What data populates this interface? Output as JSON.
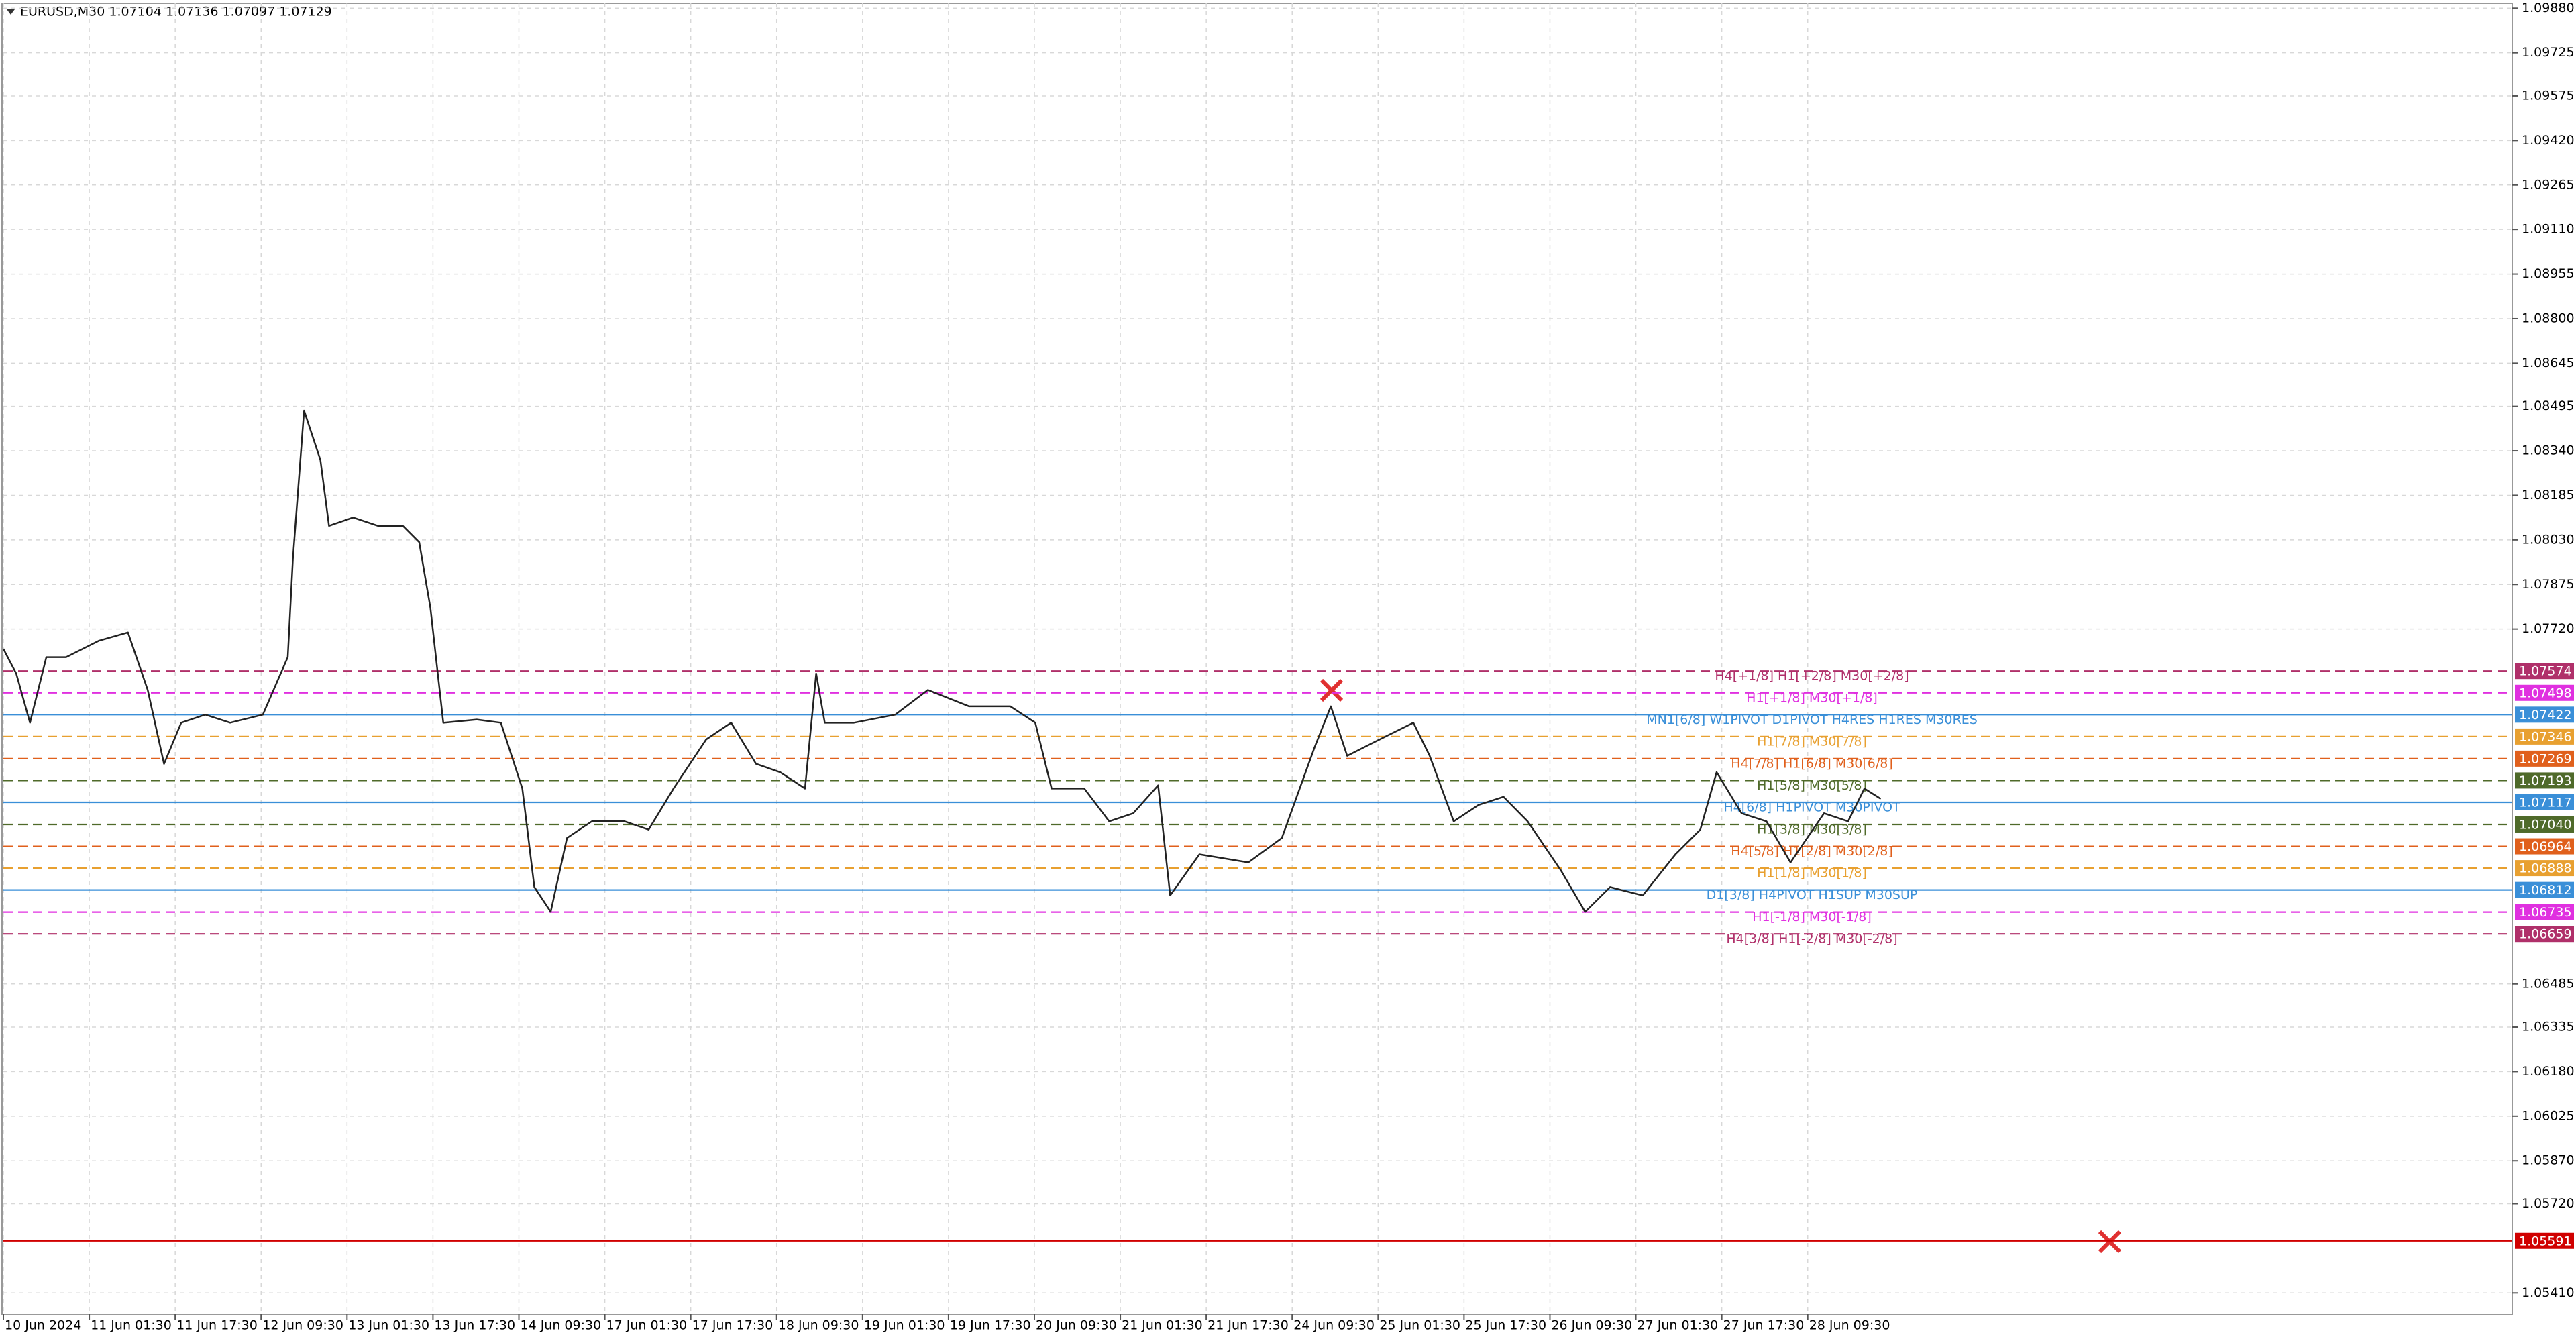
{
  "header": "EURUSD,M30  1.07104 1.07136 1.07097 1.07129",
  "chart_data": {
    "type": "line",
    "xlim": [
      0,
      29.2
    ],
    "ylim": [
      1.05336,
      1.09897
    ],
    "grid": true,
    "xticks": [
      {
        "value": 0,
        "label": "10 Jun 2024"
      },
      {
        "value": 1,
        "label": "11 Jun 01:30"
      },
      {
        "value": 2,
        "label": "11 Jun 17:30"
      },
      {
        "value": 3,
        "label": "12 Jun 09:30"
      },
      {
        "value": 4,
        "label": "13 Jun 01:30"
      },
      {
        "value": 5,
        "label": "13 Jun 17:30"
      },
      {
        "value": 6,
        "label": "14 Jun 09:30"
      },
      {
        "value": 7,
        "label": "17 Jun 01:30"
      },
      {
        "value": 8,
        "label": "17 Jun 17:30"
      },
      {
        "value": 9,
        "label": "18 Jun 09:30"
      },
      {
        "value": 10,
        "label": "19 Jun 01:30"
      },
      {
        "value": 11,
        "label": "19 Jun 17:30"
      },
      {
        "value": 12,
        "label": "20 Jun 09:30"
      },
      {
        "value": 13,
        "label": "21 Jun 01:30"
      },
      {
        "value": 14,
        "label": "21 Jun 17:30"
      },
      {
        "value": 15,
        "label": "24 Jun 09:30"
      },
      {
        "value": 16,
        "label": "25 Jun 01:30"
      },
      {
        "value": 17,
        "label": "25 Jun 17:30"
      },
      {
        "value": 18,
        "label": "26 Jun 09:30"
      },
      {
        "value": 19,
        "label": "27 Jun 01:30"
      },
      {
        "value": 20,
        "label": "27 Jun 17:30"
      },
      {
        "value": 21,
        "label": "28 Jun 09:30"
      }
    ],
    "yticks": [
      {
        "value": 1.0988,
        "label": "1.09880"
      },
      {
        "value": 1.09725,
        "label": "1.09725"
      },
      {
        "value": 1.09575,
        "label": "1.09575"
      },
      {
        "value": 1.0942,
        "label": "1.09420"
      },
      {
        "value": 1.09265,
        "label": "1.09265"
      },
      {
        "value": 1.0911,
        "label": "1.09110"
      },
      {
        "value": 1.08955,
        "label": "1.08955"
      },
      {
        "value": 1.088,
        "label": "1.08800"
      },
      {
        "value": 1.08645,
        "label": "1.08645"
      },
      {
        "value": 1.08495,
        "label": "1.08495"
      },
      {
        "value": 1.0834,
        "label": "1.08340"
      },
      {
        "value": 1.08185,
        "label": "1.08185"
      },
      {
        "value": 1.0803,
        "label": "1.08030"
      },
      {
        "value": 1.07875,
        "label": "1.07875"
      },
      {
        "value": 1.0772,
        "label": "1.07720"
      },
      {
        "value": 1.06485,
        "label": "1.06485"
      },
      {
        "value": 1.06335,
        "label": "1.06335"
      },
      {
        "value": 1.0618,
        "label": "1.06180"
      },
      {
        "value": 1.06025,
        "label": "1.06025"
      },
      {
        "value": 1.0587,
        "label": "1.05870"
      },
      {
        "value": 1.0572,
        "label": "1.05720"
      },
      {
        "value": 1.0541,
        "label": "1.05410"
      }
    ],
    "series": [
      {
        "name": "EURUSD,M30",
        "color": "#222222",
        "x": [
          0,
          0.15,
          0.31,
          0.5,
          0.73,
          1.11,
          1.45,
          1.68,
          1.87,
          2.07,
          2.35,
          2.64,
          3.02,
          3.31,
          3.37,
          3.5,
          3.69,
          3.79,
          4.07,
          4.36,
          4.65,
          4.84,
          4.97,
          5.12,
          5.51,
          5.79,
          6.04,
          6.18,
          6.37,
          6.56,
          6.85,
          7.23,
          7.51,
          7.8,
          8.18,
          8.47,
          8.76,
          9.04,
          9.33,
          9.46,
          9.56,
          9.9,
          10.38,
          10.76,
          11.24,
          11.72,
          12.01,
          12.2,
          12.58,
          12.87,
          13.15,
          13.44,
          13.58,
          13.92,
          14.49,
          14.88,
          15.26,
          15.45,
          15.64,
          16.02,
          16.41,
          16.6,
          16.88,
          17.17,
          17.46,
          17.74,
          18.13,
          18.41,
          18.7,
          19.08,
          19.46,
          19.75,
          19.94,
          20.23,
          20.52,
          20.8,
          21.19,
          21.47,
          21.66,
          21.85
        ],
        "values": [
          1.07651,
          1.07565,
          1.07394,
          1.07622,
          1.07622,
          1.07679,
          1.07708,
          1.07508,
          1.07251,
          1.07394,
          1.07422,
          1.07394,
          1.07422,
          1.07622,
          1.07965,
          1.0848,
          1.08308,
          1.08079,
          1.08108,
          1.08079,
          1.08079,
          1.08022,
          1.07794,
          1.07394,
          1.07405,
          1.07394,
          1.07165,
          1.06822,
          1.06736,
          1.06993,
          1.07051,
          1.07051,
          1.07022,
          1.07165,
          1.07336,
          1.07394,
          1.07251,
          1.07222,
          1.07165,
          1.07565,
          1.07394,
          1.07394,
          1.07422,
          1.07508,
          1.07451,
          1.07451,
          1.07394,
          1.07165,
          1.07165,
          1.07051,
          1.07079,
          1.07176,
          1.06793,
          1.06936,
          1.06908,
          1.06993,
          1.07308,
          1.07451,
          1.07279,
          1.07336,
          1.07394,
          1.07279,
          1.07051,
          1.07108,
          1.07136,
          1.07051,
          1.06879,
          1.06736,
          1.06822,
          1.06793,
          1.06936,
          1.07022,
          1.07222,
          1.07079,
          1.07051,
          1.06908,
          1.07079,
          1.07051,
          1.07165,
          1.07129
        ]
      }
    ],
    "levels": [
      {
        "price": 1.07574,
        "text": "H4[+1/8] H1[+2/8] M30[+2/8]",
        "color": "#b0306a",
        "style": "dashed"
      },
      {
        "price": 1.07498,
        "text": "H1[+1/8] M30[+1/8]",
        "color": "#e030e0",
        "style": "dashed"
      },
      {
        "price": 1.07422,
        "text": "MN1[6/8] W1PIVOT D1PIVOT H4RES H1RES M30RES",
        "color": "#3a8fd8",
        "style": "solid"
      },
      {
        "price": 1.07346,
        "text": "H1[7/8] M30[7/8]",
        "color": "#e8a030",
        "style": "dashed"
      },
      {
        "price": 1.07269,
        "text": "H4[7/8] H1[6/8] M30[6/8]",
        "color": "#e0601c",
        "style": "dashed"
      },
      {
        "price": 1.07193,
        "text": "H1[5/8] M30[5/8]",
        "color": "#4f6a2a",
        "style": "dashed"
      },
      {
        "price": 1.07117,
        "text": "H4[6/8] H1PIVOT M30PIVOT",
        "color": "#3a8fd8",
        "style": "solid"
      },
      {
        "price": {
          "value": 1.0704,
          "label": "1.07040"
        },
        "text": "H1[3/8] M30[3/8]",
        "color": "#4f6a2a",
        "style": "dashed"
      },
      {
        "price": 1.06964,
        "text": "H4[5/8] H1[2/8] M30[2/8]",
        "color": "#e0601c",
        "style": "dashed"
      },
      {
        "price": 1.06888,
        "text": "H1[1/8] M30[1/8]",
        "color": "#e8a030",
        "style": "dashed"
      },
      {
        "price": 1.06812,
        "text": "D1[3/8] H4PIVOT H1SUP M30SUP",
        "color": "#3a8fd8",
        "style": "solid"
      },
      {
        "price": 1.06735,
        "text": "H1[-1/8] M30[-1/8]",
        "color": "#e030e0",
        "style": "dashed"
      },
      {
        "price": 1.06659,
        "text": "H4[3/8] H1[-2/8] M30[-2/8]",
        "color": "#b0306a",
        "style": "dashed"
      },
      {
        "price": 1.05591,
        "color": "#d00000",
        "style": "solid"
      }
    ]
  }
}
